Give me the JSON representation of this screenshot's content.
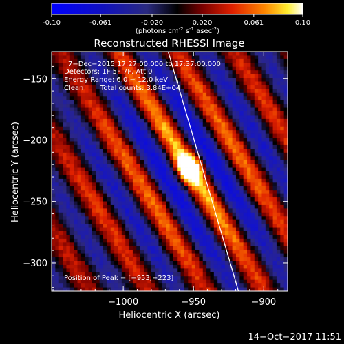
{
  "colorbar": {
    "ticks": [
      "-0.10",
      "-0.061",
      "-0.020",
      "0.020",
      "0.061",
      "0.10"
    ],
    "tick_values": [
      -0.1,
      -0.061,
      -0.02,
      0.02,
      0.061,
      0.1
    ],
    "range": [
      -0.1,
      0.1
    ],
    "unit_main": "(photons cm",
    "unit_sup1": "-2",
    "unit_mid1": " s",
    "unit_sup2": "-1",
    "unit_mid2": " asec",
    "unit_sup3": "-2",
    "unit_end": ")"
  },
  "chart_data": {
    "type": "heatmap",
    "title": "Reconstructed RHESSI Image",
    "xlabel": "Heliocentric X (arcsec)",
    "ylabel": "Heliocentric Y (arcsec)",
    "x_ticks": [
      -1000,
      -950,
      -900
    ],
    "y_ticks": [
      -150,
      -200,
      -250,
      -300
    ],
    "x_tick_labels": [
      "−1000",
      "−950",
      "−900"
    ],
    "y_tick_labels": [
      "−150",
      "−200",
      "−250",
      "−300"
    ],
    "xlim": [
      -1051,
      -883
    ],
    "ylim": [
      -323,
      -128
    ],
    "peak": [
      -953,
      -223
    ],
    "annotations": {
      "time": "7−Dec−2015 17:27:00.000 to 17:37:00.000",
      "detectors": "Detectors: 1F 5F 7F, Att 0",
      "energy": "Energy Range: 6.0 − 12.0 keV",
      "method": "Clean",
      "counts": "Total counts: 3.84E+04",
      "peak_label": "Position of Peak = [−953,−223]"
    },
    "limb_line": [
      [
        -968,
        -128
      ],
      [
        -918,
        -323
      ]
    ]
  },
  "footer": {
    "timestamp": "14−Oct−2017 11:51"
  }
}
